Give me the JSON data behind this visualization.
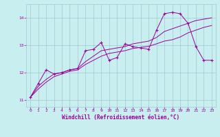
{
  "x": [
    0,
    1,
    2,
    3,
    4,
    5,
    6,
    7,
    8,
    9,
    10,
    11,
    12,
    13,
    14,
    15,
    16,
    17,
    18,
    19,
    20,
    21,
    22,
    23
  ],
  "y_main": [
    11.1,
    11.6,
    12.1,
    11.95,
    12.0,
    12.1,
    12.15,
    12.8,
    12.85,
    13.1,
    12.45,
    12.55,
    13.05,
    12.95,
    12.9,
    12.85,
    13.55,
    14.15,
    14.2,
    14.15,
    13.8,
    12.95,
    12.45,
    12.45
  ],
  "y_reg1": [
    11.1,
    11.4,
    11.65,
    11.85,
    11.95,
    12.05,
    12.1,
    12.3,
    12.45,
    12.6,
    12.7,
    12.75,
    12.8,
    12.88,
    12.92,
    12.96,
    13.05,
    13.15,
    13.2,
    13.3,
    13.45,
    13.55,
    13.65,
    13.72
  ],
  "y_reg2": [
    11.1,
    11.5,
    11.75,
    11.95,
    12.0,
    12.1,
    12.15,
    12.4,
    12.6,
    12.8,
    12.85,
    12.9,
    12.95,
    13.05,
    13.1,
    13.15,
    13.28,
    13.5,
    13.6,
    13.7,
    13.8,
    13.9,
    13.95,
    14.0
  ],
  "bg_color": "#c8eef0",
  "line_color": "#990099",
  "grid_color": "#a0c8d0",
  "xlabel": "Windchill (Refroidissement éolien,°C)",
  "xlim": [
    -0.5,
    23.5
  ],
  "ylim": [
    10.75,
    14.5
  ],
  "yticks": [
    11,
    12,
    13,
    14
  ],
  "xticks": [
    0,
    1,
    2,
    3,
    4,
    5,
    6,
    7,
    8,
    9,
    10,
    11,
    12,
    13,
    14,
    15,
    16,
    17,
    18,
    19,
    20,
    21,
    22,
    23
  ]
}
